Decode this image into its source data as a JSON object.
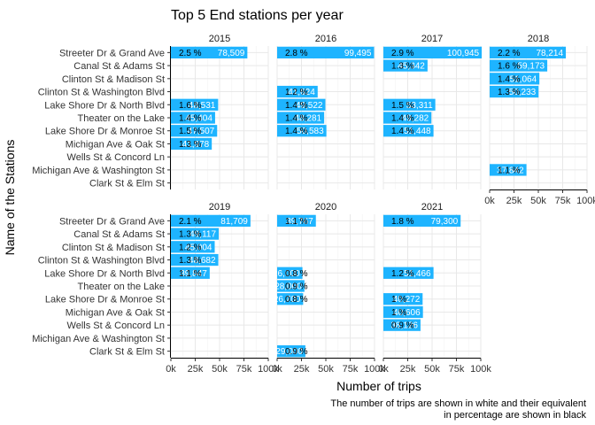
{
  "chart_data": {
    "type": "bar",
    "orientation": "horizontal",
    "title": "Top 5 End stations per year",
    "xlabel": "Number of trips",
    "ylabel": "Name of the Stations",
    "caption": [
      "The number of trips are shown in white and their equivalent",
      "in percentage are shown in black"
    ],
    "xlim": [
      0,
      100000
    ],
    "x_ticks": [
      "0k",
      "25k",
      "50k",
      "75k",
      "100k"
    ],
    "grid": true,
    "bar_color": "#1EB4FF",
    "stations": [
      "Streeter Dr & Grand Ave",
      "Canal St & Adams St",
      "Clinton St & Madison St",
      "Clinton St & Washington Blvd",
      "Lake Shore Dr & North Blvd",
      "Theater on the Lake",
      "Lake Shore Dr & Monroe St",
      "Michigan Ave & Oak St",
      "Wells St & Concord Ln",
      "Michigan Ave & Washington St",
      "Clark St & Elm St"
    ],
    "panels": [
      {
        "year": "2015",
        "bars": [
          {
            "station": "Streeter Dr & Grand Ave",
            "trips": 78509,
            "label": "78,509",
            "pct": "2.5 %"
          },
          {
            "station": "Lake Shore Dr & North Blvd",
            "trips": 48531,
            "label": "48,531",
            "pct": "1.6 %"
          },
          {
            "station": "Theater on the Lake",
            "trips": 45404,
            "label": "45,404",
            "pct": "1.4 %"
          },
          {
            "station": "Lake Shore Dr & Monroe St",
            "trips": 47507,
            "label": "47,507",
            "pct": "1.5 %"
          },
          {
            "station": "Michigan Ave & Oak St",
            "trips": 41978,
            "label": "41,978",
            "pct": "1.3 %"
          }
        ]
      },
      {
        "year": "2016",
        "bars": [
          {
            "station": "Streeter Dr & Grand Ave",
            "trips": 99495,
            "label": "99,495",
            "pct": "2.8 %"
          },
          {
            "station": "Clinton St & Washington Blvd",
            "trips": 41624,
            "label": "41,624",
            "pct": "1.2 %"
          },
          {
            "station": "Lake Shore Dr & North Blvd",
            "trips": 49522,
            "label": "49,522",
            "pct": "1.4 %"
          },
          {
            "station": "Theater on the Lake",
            "trips": 48281,
            "label": "48,281",
            "pct": "1.4 %"
          },
          {
            "station": "Lake Shore Dr & Monroe St",
            "trips": 50583,
            "label": "50,583",
            "pct": "1.4 %"
          }
        ]
      },
      {
        "year": "2017",
        "bars": [
          {
            "station": "Streeter Dr & Grand Ave",
            "trips": 100945,
            "label": "100,945",
            "pct": "2.9 %"
          },
          {
            "station": "Canal St & Adams St",
            "trips": 45342,
            "label": "45,342",
            "pct": "1.3 %"
          },
          {
            "station": "Lake Shore Dr & North Blvd",
            "trips": 53311,
            "label": "53,311",
            "pct": "1.5 %"
          },
          {
            "station": "Theater on the Lake",
            "trips": 49282,
            "label": "49,282",
            "pct": "1.4 %"
          },
          {
            "station": "Lake Shore Dr & Monroe St",
            "trips": 51448,
            "label": "51,448",
            "pct": "1.4 %"
          }
        ]
      },
      {
        "year": "2018",
        "bars": [
          {
            "station": "Streeter Dr & Grand Ave",
            "trips": 78214,
            "label": "78,214",
            "pct": "2.2 %"
          },
          {
            "station": "Canal St & Adams St",
            "trips": 59173,
            "label": "59,173",
            "pct": "1.6 %"
          },
          {
            "station": "Clinton St & Madison St",
            "trips": 51064,
            "label": "51,064",
            "pct": "1.4 %"
          },
          {
            "station": "Clinton St & Washington Blvd",
            "trips": 50233,
            "label": "50,233",
            "pct": "1.3 %"
          },
          {
            "station": "Michigan Ave & Washington St",
            "trips": 37842,
            "label": "37,842",
            "pct": "1.1 %"
          }
        ]
      },
      {
        "year": "2019",
        "bars": [
          {
            "station": "Streeter Dr & Grand Ave",
            "trips": 81709,
            "label": "81,709",
            "pct": "2.1 %"
          },
          {
            "station": "Canal St & Adams St",
            "trips": 49117,
            "label": "49,117",
            "pct": "1.3 %"
          },
          {
            "station": "Clinton St & Madison St",
            "trips": 45004,
            "label": "45,004",
            "pct": "1.2 %"
          },
          {
            "station": "Clinton St & Washington Blvd",
            "trips": 48682,
            "label": "48,682",
            "pct": "1.3 %"
          },
          {
            "station": "Lake Shore Dr & North Blvd",
            "trips": 39847,
            "label": "39,847",
            "pct": "1.1 %"
          }
        ]
      },
      {
        "year": "2020",
        "bars": [
          {
            "station": "Streeter Dr & Grand Ave",
            "trips": 39767,
            "label": "39,767",
            "pct": "1.1 %"
          },
          {
            "station": "Lake Shore Dr & North Blvd",
            "trips": 26000,
            "label": "26,000",
            "pct": "0.8 %"
          },
          {
            "station": "Theater on the Lake",
            "trips": 28000,
            "label": "28,000",
            "pct": "0.9 %"
          },
          {
            "station": "Lake Shore Dr & Monroe St",
            "trips": 26700,
            "label": "26,700",
            "pct": "0.8 %"
          },
          {
            "station": "Clark St & Elm St",
            "trips": 29000,
            "label": "29,000",
            "pct": "0.9 %"
          }
        ]
      },
      {
        "year": "2021",
        "bars": [
          {
            "station": "Streeter Dr & Grand Ave",
            "trips": 79300,
            "label": "79,300",
            "pct": "1.8 %"
          },
          {
            "station": "Lake Shore Dr & North Blvd",
            "trips": 51466,
            "label": "51,466",
            "pct": "1.2 %"
          },
          {
            "station": "Lake Shore Dr & Monroe St",
            "trips": 40272,
            "label": "40,272",
            "pct": "1 %"
          },
          {
            "station": "Michigan Ave & Oak St",
            "trips": 40606,
            "label": "40,606",
            "pct": "1 %"
          },
          {
            "station": "Wells St & Concord Ln",
            "trips": 38126,
            "label": "38,126",
            "pct": "0.9 %"
          }
        ]
      }
    ]
  }
}
